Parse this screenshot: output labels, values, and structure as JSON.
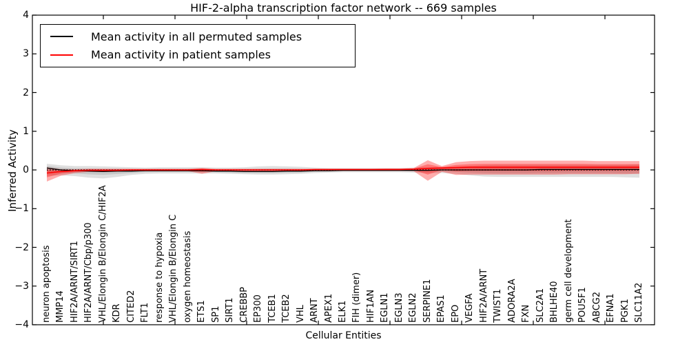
{
  "window": {
    "background": "#ffffff"
  },
  "chart_data": {
    "type": "line",
    "title": "HIF-2-alpha transcription factor network -- 669 samples",
    "xlabel": "Cellular Entities",
    "ylabel": "Inferred Activity",
    "ylim": [
      -4,
      4
    ],
    "yticks": [
      -4,
      -3,
      -2,
      -1,
      0,
      1,
      2,
      3,
      4
    ],
    "grid": false,
    "legend_position": "upper left",
    "categories": [
      "neuron apoptosis",
      "MMP14",
      "HIF2A/ARNT/SIRT1",
      "HIF2A/ARNT/Cbp/p300",
      "VHL/Elongin B/Elongin C/HIF2A",
      "KDR",
      "CITED2",
      "FLT1",
      "response to hypoxia",
      "VHL/Elongin B/Elongin C",
      "oxygen homeostasis",
      "ETS1",
      "SP1",
      "SIRT1",
      "CREBBP",
      "EP300",
      "TCEB1",
      "TCEB2",
      "VHL",
      "ARNT",
      "APEX1",
      "ELK1",
      "FIH (dimer)",
      "HIF1AN",
      "EGLN1",
      "EGLN3",
      "EGLN2",
      "SERPINE1",
      "EPAS1",
      "EPO",
      "VEGFA",
      "HIF2A/ARNT",
      "TWIST1",
      "ADORA2A",
      "FXN",
      "SLC2A1",
      "BHLHE40",
      "germ cell development",
      "POU5F1",
      "ABCG2",
      "EFNA1",
      "PGK1",
      "SLC11A2"
    ],
    "series": [
      {
        "name": "Mean activity in all permuted samples",
        "color": "#000000",
        "line": "solid",
        "values": [
          0.05,
          0.0,
          -0.02,
          -0.03,
          -0.04,
          -0.03,
          -0.03,
          -0.02,
          -0.02,
          -0.02,
          -0.02,
          -0.02,
          -0.03,
          -0.03,
          -0.04,
          -0.04,
          -0.04,
          -0.03,
          -0.03,
          -0.02,
          -0.02,
          -0.01,
          -0.01,
          -0.01,
          -0.01,
          -0.01,
          -0.01,
          -0.01,
          0.0,
          0.0,
          0.0,
          0.0,
          0.0,
          0.0,
          0.0,
          0.01,
          0.01,
          0.01,
          0.01,
          0.01,
          0.01,
          0.01,
          0.01
        ]
      },
      {
        "name": "Mean activity in patient samples",
        "color": "#ff0000",
        "line": "solid",
        "values": [
          -0.08,
          -0.04,
          -0.02,
          -0.01,
          -0.01,
          -0.01,
          0.0,
          0.0,
          0.0,
          0.0,
          0.0,
          0.01,
          0.0,
          0.0,
          0.0,
          0.0,
          0.0,
          0.0,
          0.0,
          0.01,
          0.01,
          0.01,
          0.01,
          0.01,
          0.01,
          0.01,
          0.02,
          0.04,
          0.05,
          0.06,
          0.07,
          0.07,
          0.07,
          0.07,
          0.07,
          0.07,
          0.07,
          0.07,
          0.07,
          0.07,
          0.07,
          0.07,
          0.07
        ]
      }
    ],
    "reference_line": {
      "value": 0,
      "style": "dotted",
      "color": "#000000"
    },
    "bands": [
      {
        "name": "permuted-spread",
        "series_index": 0,
        "color": "#808080",
        "alpha": 0.25,
        "inner_scale": 0.5,
        "upper": [
          0.16,
          0.12,
          0.1,
          0.1,
          0.09,
          0.08,
          0.07,
          0.06,
          0.07,
          0.07,
          0.07,
          0.07,
          0.06,
          0.06,
          0.07,
          0.09,
          0.1,
          0.09,
          0.08,
          0.06,
          0.05,
          0.05,
          0.05,
          0.05,
          0.05,
          0.05,
          0.06,
          0.07,
          0.07,
          0.08,
          0.1,
          0.12,
          0.13,
          0.13,
          0.13,
          0.13,
          0.13,
          0.13,
          0.13,
          0.13,
          0.13,
          0.13,
          0.14
        ],
        "lower": [
          -0.15,
          -0.14,
          -0.16,
          -0.2,
          -0.22,
          -0.18,
          -0.13,
          -0.1,
          -0.09,
          -0.09,
          -0.09,
          -0.09,
          -0.09,
          -0.1,
          -0.11,
          -0.12,
          -0.12,
          -0.11,
          -0.1,
          -0.08,
          -0.07,
          -0.06,
          -0.06,
          -0.06,
          -0.06,
          -0.06,
          -0.07,
          -0.08,
          -0.08,
          -0.1,
          -0.14,
          -0.17,
          -0.18,
          -0.18,
          -0.18,
          -0.18,
          -0.18,
          -0.18,
          -0.18,
          -0.18,
          -0.18,
          -0.19,
          -0.2
        ]
      },
      {
        "name": "patient-spread",
        "series_index": 1,
        "color": "#ff0000",
        "alpha": 0.32,
        "inner_scale": 0.5,
        "upper": [
          0.07,
          0.02,
          0.02,
          0.03,
          0.03,
          0.03,
          0.03,
          0.03,
          0.03,
          0.03,
          0.03,
          0.05,
          0.03,
          0.03,
          0.03,
          0.03,
          0.03,
          0.03,
          0.03,
          0.03,
          0.03,
          0.03,
          0.03,
          0.03,
          0.04,
          0.04,
          0.05,
          0.25,
          0.1,
          0.2,
          0.23,
          0.24,
          0.24,
          0.24,
          0.24,
          0.24,
          0.24,
          0.24,
          0.24,
          0.23,
          0.23,
          0.23,
          0.23
        ],
        "lower": [
          -0.3,
          -0.15,
          -0.08,
          -0.05,
          -0.05,
          -0.04,
          -0.03,
          -0.03,
          -0.03,
          -0.03,
          -0.03,
          -0.1,
          -0.03,
          -0.03,
          -0.03,
          -0.03,
          -0.03,
          -0.03,
          -0.03,
          -0.02,
          -0.02,
          -0.02,
          -0.02,
          -0.02,
          -0.02,
          -0.02,
          -0.03,
          -0.28,
          -0.05,
          -0.13,
          -0.12,
          -0.12,
          -0.12,
          -0.12,
          -0.12,
          -0.12,
          -0.12,
          -0.11,
          -0.11,
          -0.11,
          -0.11,
          -0.11,
          -0.1
        ]
      }
    ]
  }
}
